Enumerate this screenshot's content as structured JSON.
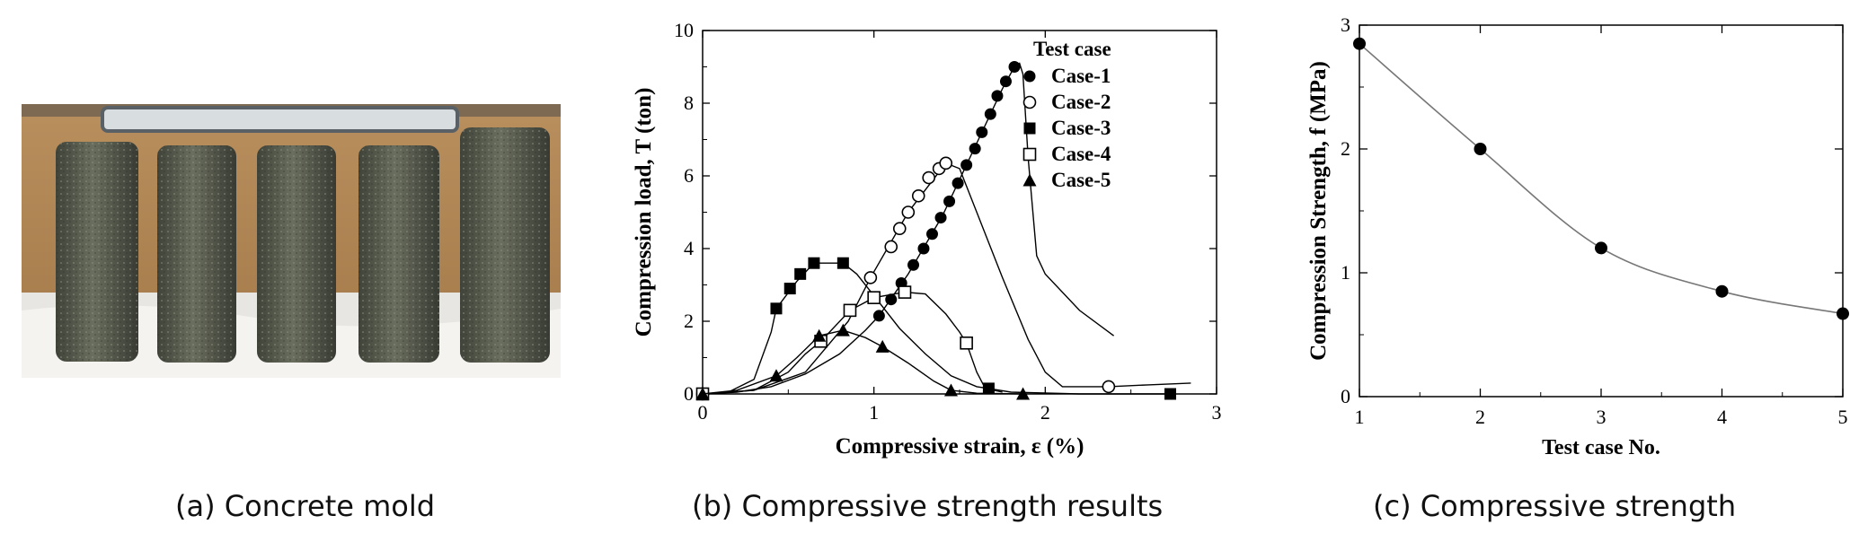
{
  "captions": {
    "a": "(a) Concrete mold",
    "b": "(b) Compressive strength results",
    "c": "(c) Compressive strength"
  },
  "photo": {
    "subject": "five-concrete-cylinders-icon",
    "cylinder_count": 5
  },
  "chart_data": [
    {
      "type": "line",
      "xlabel": "Compressive strain,  ε (%)",
      "ylabel": "Compression load,  T (ton)",
      "xlim": [
        0,
        3
      ],
      "ylim": [
        0,
        10
      ],
      "xticks": [
        "0",
        "1",
        "2",
        "3"
      ],
      "yticks": [
        "0",
        "2",
        "4",
        "6",
        "8",
        "10"
      ],
      "grid": false,
      "legend_title": "Test case",
      "legend_position": "top-right",
      "series": [
        {
          "name": "Case-1",
          "marker": "filled-circle",
          "points": [
            [
              0,
              0
            ],
            [
              1.03,
              2.15
            ],
            [
              1.1,
              2.6
            ],
            [
              1.16,
              3.05
            ],
            [
              1.23,
              3.55
            ],
            [
              1.29,
              4.0
            ],
            [
              1.34,
              4.4
            ],
            [
              1.39,
              4.85
            ],
            [
              1.44,
              5.3
            ],
            [
              1.49,
              5.8
            ],
            [
              1.54,
              6.3
            ],
            [
              1.59,
              6.75
            ],
            [
              1.63,
              7.2
            ],
            [
              1.68,
              7.7
            ],
            [
              1.72,
              8.2
            ],
            [
              1.77,
              8.6
            ],
            [
              1.82,
              9.0
            ]
          ],
          "curve": [
            [
              0,
              0
            ],
            [
              0.2,
              0.05
            ],
            [
              0.4,
              0.2
            ],
            [
              0.6,
              0.55
            ],
            [
              0.8,
              1.1
            ],
            [
              0.95,
              1.75
            ],
            [
              1.03,
              2.15
            ],
            [
              1.2,
              3.3
            ],
            [
              1.4,
              4.9
            ],
            [
              1.6,
              6.9
            ],
            [
              1.75,
              8.4
            ],
            [
              1.82,
              9.0
            ],
            [
              1.85,
              9.1
            ],
            [
              1.87,
              8.8
            ],
            [
              1.9,
              6.5
            ],
            [
              1.95,
              3.8
            ],
            [
              2.0,
              3.3
            ],
            [
              2.2,
              2.3
            ],
            [
              2.4,
              1.6
            ]
          ]
        },
        {
          "name": "Case-2",
          "marker": "open-circle",
          "points": [
            [
              0,
              0
            ],
            [
              0.98,
              3.2
            ],
            [
              1.1,
              4.05
            ],
            [
              1.15,
              4.55
            ],
            [
              1.2,
              5.0
            ],
            [
              1.26,
              5.45
            ],
            [
              1.32,
              5.95
            ],
            [
              1.38,
              6.2
            ],
            [
              1.42,
              6.35
            ],
            [
              2.37,
              0.2
            ]
          ],
          "curve": [
            [
              0,
              0
            ],
            [
              0.3,
              0.1
            ],
            [
              0.6,
              0.6
            ],
            [
              0.85,
              2.0
            ],
            [
              0.98,
              3.2
            ],
            [
              1.2,
              5.0
            ],
            [
              1.42,
              6.35
            ],
            [
              1.5,
              6.2
            ],
            [
              1.6,
              5.0
            ],
            [
              1.75,
              3.2
            ],
            [
              1.9,
              1.5
            ],
            [
              2.0,
              0.6
            ],
            [
              2.1,
              0.2
            ],
            [
              2.37,
              0.2
            ],
            [
              2.6,
              0.25
            ],
            [
              2.85,
              0.3
            ]
          ]
        },
        {
          "name": "Case-3",
          "marker": "filled-square",
          "points": [
            [
              0,
              0
            ],
            [
              0.43,
              2.35
            ],
            [
              0.51,
              2.9
            ],
            [
              0.57,
              3.3
            ],
            [
              0.65,
              3.6
            ],
            [
              0.82,
              3.6
            ],
            [
              1.67,
              0.15
            ],
            [
              2.73,
              0.0
            ]
          ],
          "curve": [
            [
              0,
              0
            ],
            [
              0.15,
              0.05
            ],
            [
              0.3,
              0.4
            ],
            [
              0.4,
              1.7
            ],
            [
              0.43,
              2.35
            ],
            [
              0.55,
              3.1
            ],
            [
              0.65,
              3.6
            ],
            [
              0.82,
              3.6
            ],
            [
              0.9,
              3.3
            ],
            [
              1.0,
              2.7
            ],
            [
              1.15,
              1.8
            ],
            [
              1.3,
              1.1
            ],
            [
              1.45,
              0.5
            ],
            [
              1.6,
              0.2
            ],
            [
              1.67,
              0.15
            ],
            [
              1.8,
              0.05
            ],
            [
              2.2,
              0.0
            ],
            [
              2.73,
              0.0
            ]
          ]
        },
        {
          "name": "Case-4",
          "marker": "open-square",
          "points": [
            [
              0,
              0
            ],
            [
              0.69,
              1.45
            ],
            [
              0.86,
              2.3
            ],
            [
              1.0,
              2.65
            ],
            [
              1.18,
              2.8
            ],
            [
              1.54,
              1.4
            ]
          ],
          "curve": [
            [
              0,
              0
            ],
            [
              0.3,
              0.1
            ],
            [
              0.5,
              0.6
            ],
            [
              0.6,
              1.1
            ],
            [
              0.69,
              1.45
            ],
            [
              0.86,
              2.3
            ],
            [
              1.0,
              2.65
            ],
            [
              1.18,
              2.8
            ],
            [
              1.3,
              2.75
            ],
            [
              1.42,
              2.2
            ],
            [
              1.5,
              1.7
            ],
            [
              1.54,
              1.4
            ],
            [
              1.6,
              0.6
            ],
            [
              1.65,
              0.15
            ],
            [
              1.75,
              0.05
            ]
          ]
        },
        {
          "name": "Case-5",
          "marker": "filled-triangle",
          "points": [
            [
              0,
              0
            ],
            [
              0.43,
              0.5
            ],
            [
              0.68,
              1.6
            ],
            [
              0.82,
              1.75
            ],
            [
              1.05,
              1.3
            ],
            [
              1.45,
              0.1
            ],
            [
              1.87,
              0.0
            ]
          ],
          "curve": [
            [
              0,
              0
            ],
            [
              0.2,
              0.1
            ],
            [
              0.43,
              0.5
            ],
            [
              0.55,
              1.0
            ],
            [
              0.68,
              1.6
            ],
            [
              0.82,
              1.75
            ],
            [
              0.95,
              1.55
            ],
            [
              1.05,
              1.3
            ],
            [
              1.2,
              0.85
            ],
            [
              1.35,
              0.35
            ],
            [
              1.45,
              0.1
            ],
            [
              1.6,
              0.02
            ],
            [
              1.87,
              0.0
            ]
          ]
        }
      ]
    },
    {
      "type": "line",
      "xlabel": "Test case No.",
      "ylabel": "Compression Strength,  f (MPa)",
      "xlim": [
        1,
        5
      ],
      "ylim": [
        0,
        3
      ],
      "xticks": [
        "1",
        "2",
        "3",
        "4",
        "5"
      ],
      "yticks": [
        "0",
        "1",
        "2",
        "3"
      ],
      "grid": false,
      "series": [
        {
          "name": "Compression strength",
          "marker": "filled-circle",
          "x": [
            1,
            2,
            3,
            4,
            5
          ],
          "values": [
            2.85,
            2.0,
            1.2,
            0.85,
            0.67
          ]
        }
      ]
    }
  ]
}
